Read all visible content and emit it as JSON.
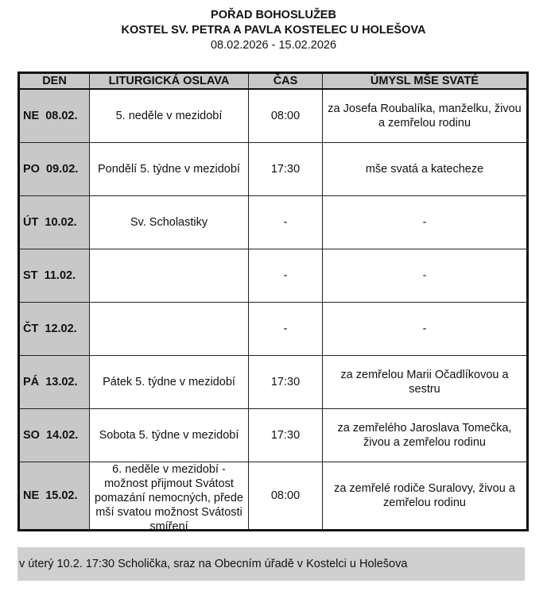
{
  "header": {
    "title": "POŘAD BOHOSLUŽEB",
    "church": "KOSTEL SV. PETRA A PAVLA KOSTELEC U HOLEŠOVA",
    "dates": "08.02.2026 - 15.02.2026"
  },
  "table": {
    "columns": [
      "DEN",
      "LITURGICKÁ OSLAVA",
      "ČAS",
      "ÚMYSL MŠE SVATÉ"
    ],
    "rows": [
      {
        "day": "NE  08.02.",
        "celebration": "5. neděle v mezidobí",
        "time": "08:00",
        "intention": "za Josefa Roubalíka, manželku, živou a zemřelou rodinu"
      },
      {
        "day": "PO  09.02.",
        "celebration": "Pondělí 5. týdne v mezidobí",
        "time": "17:30",
        "intention": "mše svatá a katecheze"
      },
      {
        "day": "ÚT  10.02.",
        "celebration": "Sv. Scholastiky",
        "time": "-",
        "intention": "-"
      },
      {
        "day": "ST  11.02.",
        "celebration": "",
        "time": "-",
        "intention": "-"
      },
      {
        "day": "ČT  12.02.",
        "celebration": "",
        "time": "-",
        "intention": "-"
      },
      {
        "day": "PÁ  13.02.",
        "celebration": "Pátek 5. týdne v mezidobí",
        "time": "17:30",
        "intention": "za zemřelou Marii Očadlíkovou a sestru"
      },
      {
        "day": "SO  14.02.",
        "celebration": "Sobota 5. týdne v mezidobí",
        "time": "17:30",
        "intention": "za zemřelého Jaroslava Tomečka, živou a zemřelou rodinu"
      },
      {
        "day": "NE  15.02.",
        "celebration": "6. neděle v mezidobí - možnost přijmout Svátost pomazání nemocných, přede mší svatou možnost Svátosti smíření",
        "time": "08:00",
        "intention": "za zemřelé rodiče Suralovy, živou a zemřelou rodinu"
      }
    ]
  },
  "note": "v úterý 10.2. 17:30 Scholička, sraz na Obecním úřadě v Kostelci u Holešova"
}
